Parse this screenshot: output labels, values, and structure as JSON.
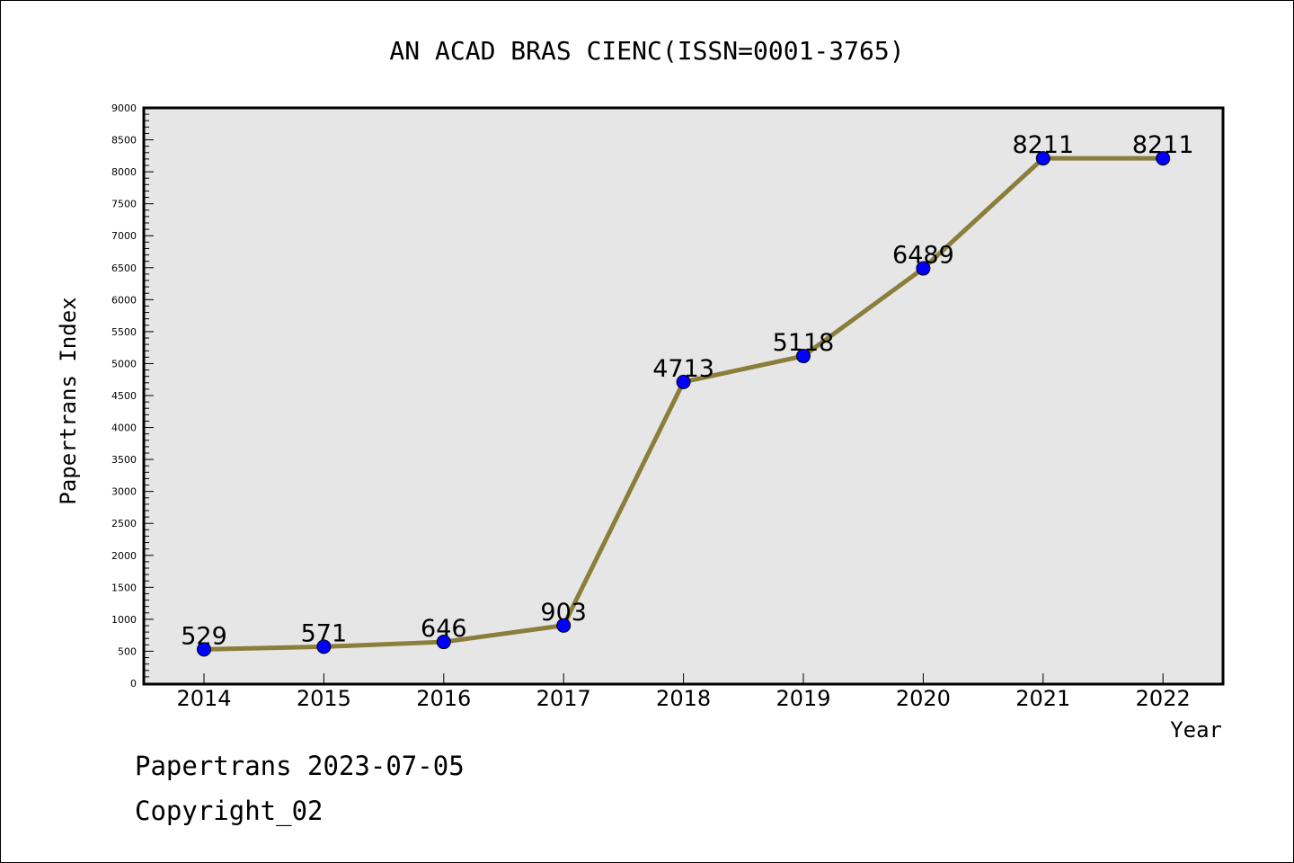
{
  "chart_data": {
    "type": "line",
    "title": "AN ACAD BRAS CIENC(ISSN=0001-3765)",
    "xlabel": "Year",
    "ylabel": "Papertrans Index",
    "categories": [
      "2014",
      "2015",
      "2016",
      "2017",
      "2018",
      "2019",
      "2020",
      "2021",
      "2022"
    ],
    "series": [
      {
        "values": [
          529,
          571,
          646,
          903,
          4713,
          5118,
          6489,
          8211,
          8211
        ]
      }
    ],
    "data_labels": [
      "529",
      "571",
      "646",
      "903",
      "4713",
      "5118",
      "6489",
      "8211",
      "8211"
    ],
    "ylim": [
      0,
      9000
    ],
    "yticks": [
      "0",
      "500",
      "1000",
      "1500",
      "2000",
      "2500",
      "3000",
      "3500",
      "4000",
      "4500",
      "5000",
      "5500",
      "6000",
      "6500",
      "7000",
      "7500",
      "8000",
      "8500",
      "9000"
    ],
    "grid": false,
    "legend": "none",
    "colors": {
      "line": "#8b7d3a",
      "marker": "#0000ff",
      "plot_background": "#e6e6e6",
      "axes": "#000000"
    }
  },
  "footer": {
    "line1": "Papertrans 2023-07-05",
    "line2": "Copyright_02"
  }
}
